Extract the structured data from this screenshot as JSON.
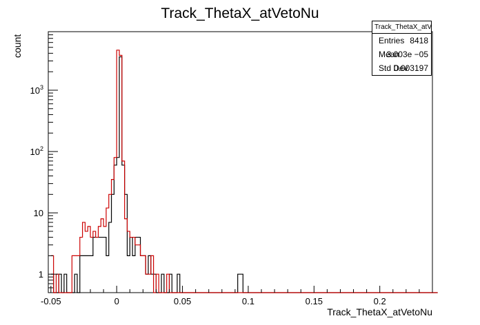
{
  "chart_data": {
    "type": "step",
    "title": "Track_ThetaX_atVetoNu",
    "xlabel": "Track_ThetaX_atVetoNu",
    "ylabel": "count",
    "xlim": [
      -0.052,
      0.24
    ],
    "ylim": [
      0.5,
      9000
    ],
    "yscale": "log",
    "grid": false,
    "x_ticks": [
      "-0.05",
      "0",
      "0.05",
      "0.1",
      "0.15",
      "0.2"
    ],
    "x_tick_values": [
      -0.05,
      0,
      0.05,
      0.1,
      0.15,
      0.2
    ],
    "y_ticks": [
      "1",
      "10",
      "10^2",
      "10^3"
    ],
    "y_tick_values": [
      1,
      10,
      100,
      1000
    ],
    "bin_width": 0.002,
    "x_first": -0.05,
    "series": [
      {
        "color": "#000000",
        "values": [
          1,
          0,
          0,
          1,
          0,
          1,
          0,
          0,
          0,
          1,
          0,
          2,
          2,
          2,
          2,
          2,
          4,
          4,
          4,
          4,
          4,
          2,
          7,
          20,
          60,
          80,
          3500,
          60,
          20,
          2,
          4,
          2,
          4,
          4,
          2,
          2,
          1,
          2,
          1,
          1,
          0,
          0,
          1,
          0,
          0,
          1,
          0,
          0,
          1,
          0,
          0,
          0,
          0,
          0,
          0,
          0,
          0,
          0,
          0,
          0,
          0,
          0,
          0,
          0,
          0,
          0,
          0,
          0,
          0,
          0,
          0,
          1,
          1,
          0,
          0,
          0,
          0,
          0,
          0,
          0,
          0,
          0,
          0,
          0,
          0,
          0,
          0,
          0,
          0,
          0,
          0,
          0,
          0,
          0,
          0,
          0,
          0,
          0,
          0,
          0,
          0,
          0,
          0,
          0,
          0,
          0,
          0,
          0,
          0,
          0,
          0,
          0,
          0,
          0,
          0,
          0,
          0,
          0,
          0,
          0,
          0,
          0,
          0,
          0,
          0,
          0,
          0,
          0,
          0,
          0,
          0,
          0,
          0,
          0,
          0,
          0,
          0,
          0,
          0,
          0,
          0,
          0,
          0,
          0,
          0,
          0,
          0
        ]
      },
      {
        "color": "#cc0000",
        "values": [
          2,
          0,
          1,
          0,
          0,
          0,
          0,
          0,
          2,
          2,
          2,
          4,
          7,
          5,
          6,
          4,
          5,
          4,
          6,
          8,
          6,
          12,
          20,
          35,
          80,
          4500,
          3700,
          70,
          8,
          5,
          4,
          4,
          3,
          3,
          2,
          2,
          1,
          1,
          2,
          0,
          1,
          0,
          0,
          0,
          1,
          0,
          0,
          0,
          0,
          0,
          0,
          0,
          0,
          0,
          0,
          0,
          0,
          0,
          0,
          0,
          0,
          0,
          0,
          0,
          0,
          0,
          0,
          0,
          0,
          0,
          0,
          0,
          0,
          0,
          0,
          0,
          0,
          0,
          0,
          0,
          0,
          0,
          0,
          0,
          0,
          0,
          0,
          0,
          0,
          0,
          0,
          0,
          0,
          0,
          0,
          0,
          0,
          0,
          0,
          0,
          0,
          0,
          0,
          0,
          0,
          0,
          0,
          0,
          0,
          0,
          0,
          0,
          0,
          0,
          0,
          0,
          0,
          0,
          0,
          0,
          0,
          0,
          0,
          0,
          0,
          0,
          0,
          0,
          0,
          0,
          0,
          0,
          0,
          0,
          0,
          0,
          0,
          0,
          0,
          0,
          0,
          0,
          0,
          0,
          0,
          0,
          0
        ]
      }
    ],
    "stats_box": {
      "title": "Track_ThetaX_atVetoNu",
      "rows": [
        {
          "key": "Entries",
          "value": "8418"
        },
        {
          "key": "Mean",
          "value": "3.003e −05"
        },
        {
          "key": "Std Dev",
          "value": "0.003197"
        }
      ]
    }
  }
}
